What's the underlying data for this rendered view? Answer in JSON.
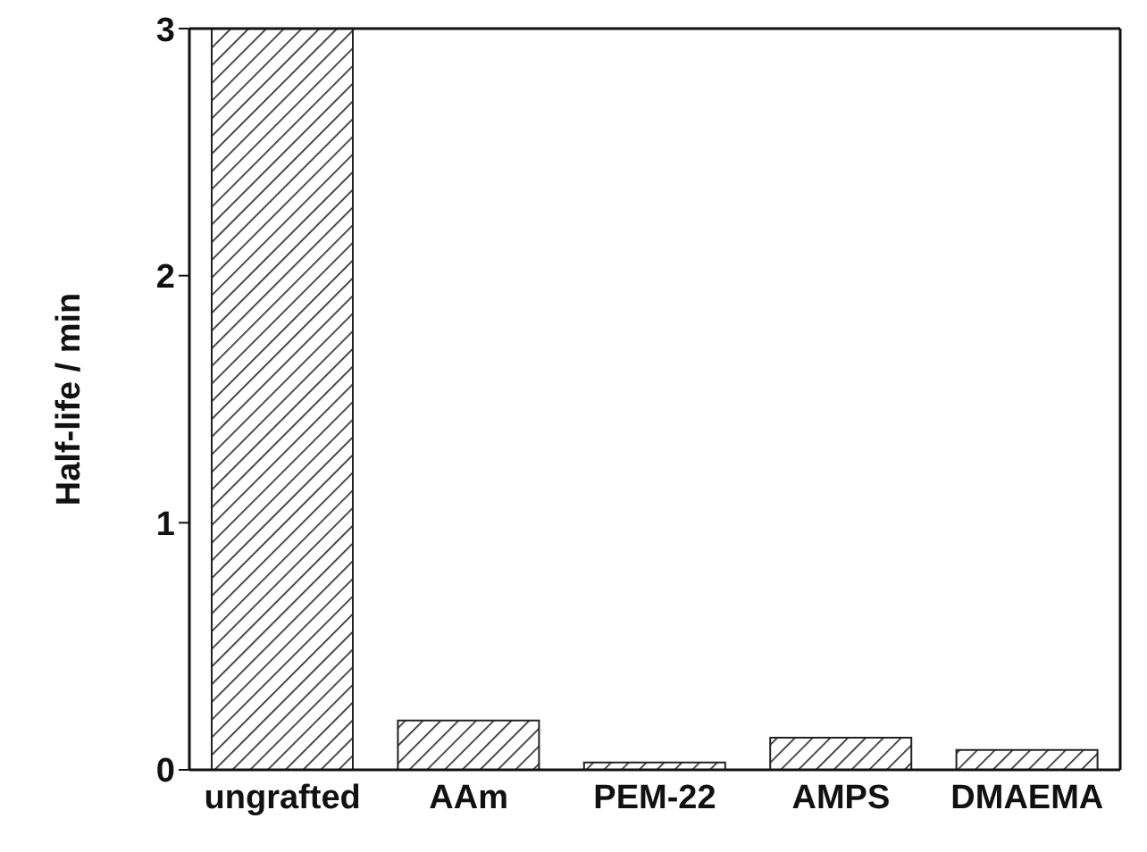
{
  "chart_data": {
    "type": "bar",
    "ylabel": "Half-life / min",
    "categories": [
      "ungrafted",
      "AAm",
      "PEM-22",
      "AMPS",
      "DMAEMA"
    ],
    "values": [
      3,
      0.2,
      0.03,
      0.13,
      0.08
    ],
    "color": "#222222",
    "ylim": [
      0,
      3
    ],
    "yticks": [
      0,
      1,
      2,
      3
    ],
    "grid": false
  }
}
